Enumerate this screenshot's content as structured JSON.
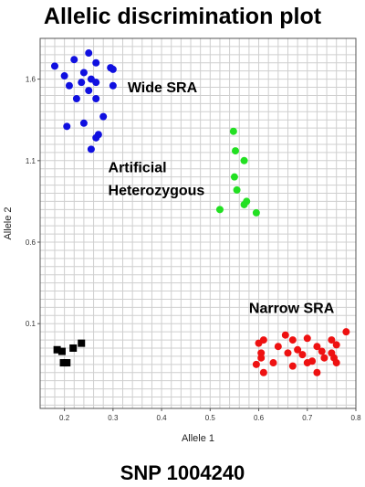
{
  "chart_data": {
    "type": "scatter",
    "title": "Allelic discrimination plot",
    "subtitle": "SNP 1004240",
    "xlabel": "Allele 1",
    "ylabel": "Allele 2",
    "xlim": [
      0.15,
      0.8
    ],
    "ylim": [
      -0.42,
      1.85
    ],
    "xticks": [
      "0.2",
      "0.3",
      "0.4",
      "0.5",
      "0.6",
      "0.7",
      "0.8"
    ],
    "yticks": [
      "0.1",
      "0.6",
      "1.1",
      "1.6"
    ],
    "xtick_values": [
      0.2,
      0.3,
      0.4,
      0.5,
      0.6,
      0.7,
      0.8
    ],
    "ytick_values": [
      0.1,
      0.6,
      1.1,
      1.6
    ],
    "grid": true,
    "series": [
      {
        "color": "#1010e0",
        "marker": "circle",
        "points": [
          [
            0.18,
            1.68
          ],
          [
            0.22,
            1.72
          ],
          [
            0.25,
            1.76
          ],
          [
            0.265,
            1.7
          ],
          [
            0.2,
            1.62
          ],
          [
            0.24,
            1.64
          ],
          [
            0.295,
            1.67
          ],
          [
            0.3,
            1.66
          ],
          [
            0.21,
            1.56
          ],
          [
            0.235,
            1.58
          ],
          [
            0.255,
            1.6
          ],
          [
            0.265,
            1.58
          ],
          [
            0.3,
            1.56
          ],
          [
            0.25,
            1.53
          ],
          [
            0.225,
            1.48
          ],
          [
            0.265,
            1.48
          ],
          [
            0.28,
            1.37
          ],
          [
            0.24,
            1.33
          ],
          [
            0.205,
            1.31
          ],
          [
            0.27,
            1.26
          ],
          [
            0.265,
            1.24
          ],
          [
            0.255,
            1.17
          ]
        ]
      },
      {
        "color": "#22e022",
        "marker": "circle",
        "points": [
          [
            0.548,
            1.28
          ],
          [
            0.552,
            1.16
          ],
          [
            0.57,
            1.1
          ],
          [
            0.55,
            1.0
          ],
          [
            0.555,
            0.92
          ],
          [
            0.575,
            0.85
          ],
          [
            0.57,
            0.83
          ],
          [
            0.52,
            0.8
          ],
          [
            0.595,
            0.78
          ]
        ]
      },
      {
        "color": "#ee1111",
        "marker": "circle",
        "points": [
          [
            0.78,
            0.05
          ],
          [
            0.655,
            0.03
          ],
          [
            0.61,
            0.0
          ],
          [
            0.67,
            0.0
          ],
          [
            0.7,
            0.01
          ],
          [
            0.75,
            0.0
          ],
          [
            0.6,
            -0.02
          ],
          [
            0.64,
            -0.04
          ],
          [
            0.72,
            -0.04
          ],
          [
            0.76,
            -0.03
          ],
          [
            0.605,
            -0.08
          ],
          [
            0.66,
            -0.08
          ],
          [
            0.68,
            -0.06
          ],
          [
            0.69,
            -0.09
          ],
          [
            0.73,
            -0.07
          ],
          [
            0.75,
            -0.08
          ],
          [
            0.755,
            -0.11
          ],
          [
            0.7,
            -0.14
          ],
          [
            0.71,
            -0.13
          ],
          [
            0.735,
            -0.11
          ],
          [
            0.595,
            -0.15
          ],
          [
            0.63,
            -0.14
          ],
          [
            0.61,
            -0.2
          ],
          [
            0.67,
            -0.16
          ],
          [
            0.72,
            -0.2
          ],
          [
            0.76,
            -0.14
          ],
          [
            0.605,
            -0.11
          ]
        ]
      },
      {
        "color": "#000000",
        "marker": "square",
        "points": [
          [
            0.235,
            -0.02
          ],
          [
            0.218,
            -0.05
          ],
          [
            0.185,
            -0.06
          ],
          [
            0.195,
            -0.07
          ],
          [
            0.198,
            -0.14
          ],
          [
            0.205,
            -0.14
          ]
        ]
      }
    ],
    "annotations": [
      {
        "text": "Wide SRA",
        "x": 0.33,
        "y": 1.52
      },
      {
        "text": "Artificial",
        "x": 0.29,
        "y": 1.03
      },
      {
        "text": "Heterozygous",
        "x": 0.29,
        "y": 0.89
      },
      {
        "text": "Narrow SRA",
        "x": 0.58,
        "y": 0.165
      }
    ]
  }
}
